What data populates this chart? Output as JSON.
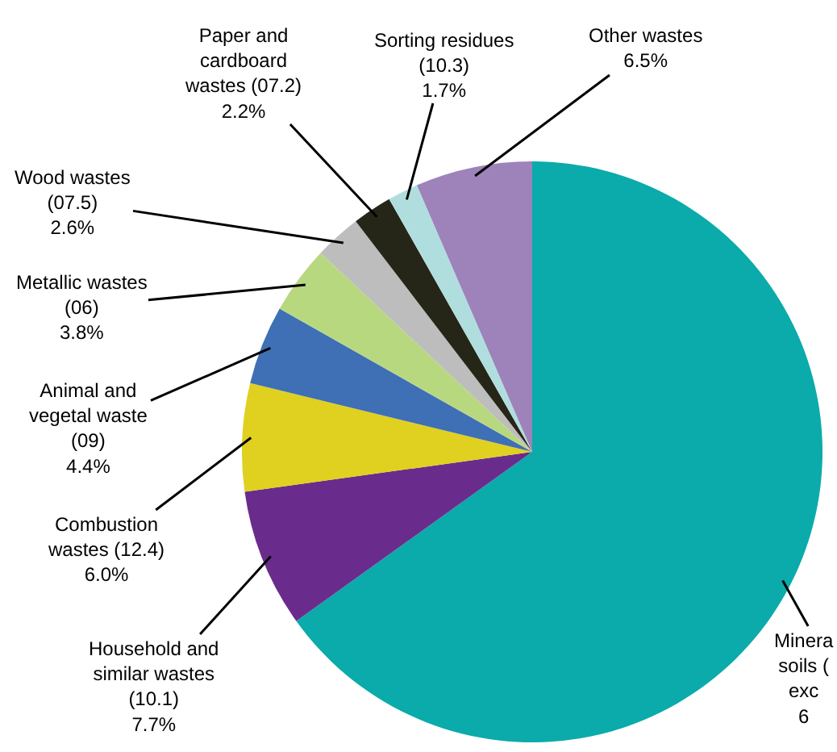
{
  "chart_data": {
    "type": "pie",
    "categories": [
      "Minera\nsoils (\nexc\n6",
      "Household and\nsimilar wastes\n(10.1)\n7.7%",
      "Combustion\nwastes (12.4)\n6.0%",
      "Animal and\nvegetal waste\n(09)\n4.4%",
      "Metallic wastes\n(06)\n3.8%",
      "Wood wastes\n(07.5)\n2.6%",
      "Paper and\ncardboard\nwastes (07.2)\n2.2%",
      "Sorting residues\n(10.3)\n1.7%",
      "Other wastes\n6.5%"
    ],
    "values": [
      65.1,
      7.7,
      6.0,
      4.4,
      3.8,
      2.6,
      2.2,
      1.7,
      6.5
    ],
    "colors": [
      "#0aabaa",
      "#6a2c8c",
      "#e0d020",
      "#3f6fb5",
      "#b8d880",
      "#bdbdbd",
      "#262618",
      "#b0dede",
      "#9e82ba"
    ],
    "legend": false
  }
}
